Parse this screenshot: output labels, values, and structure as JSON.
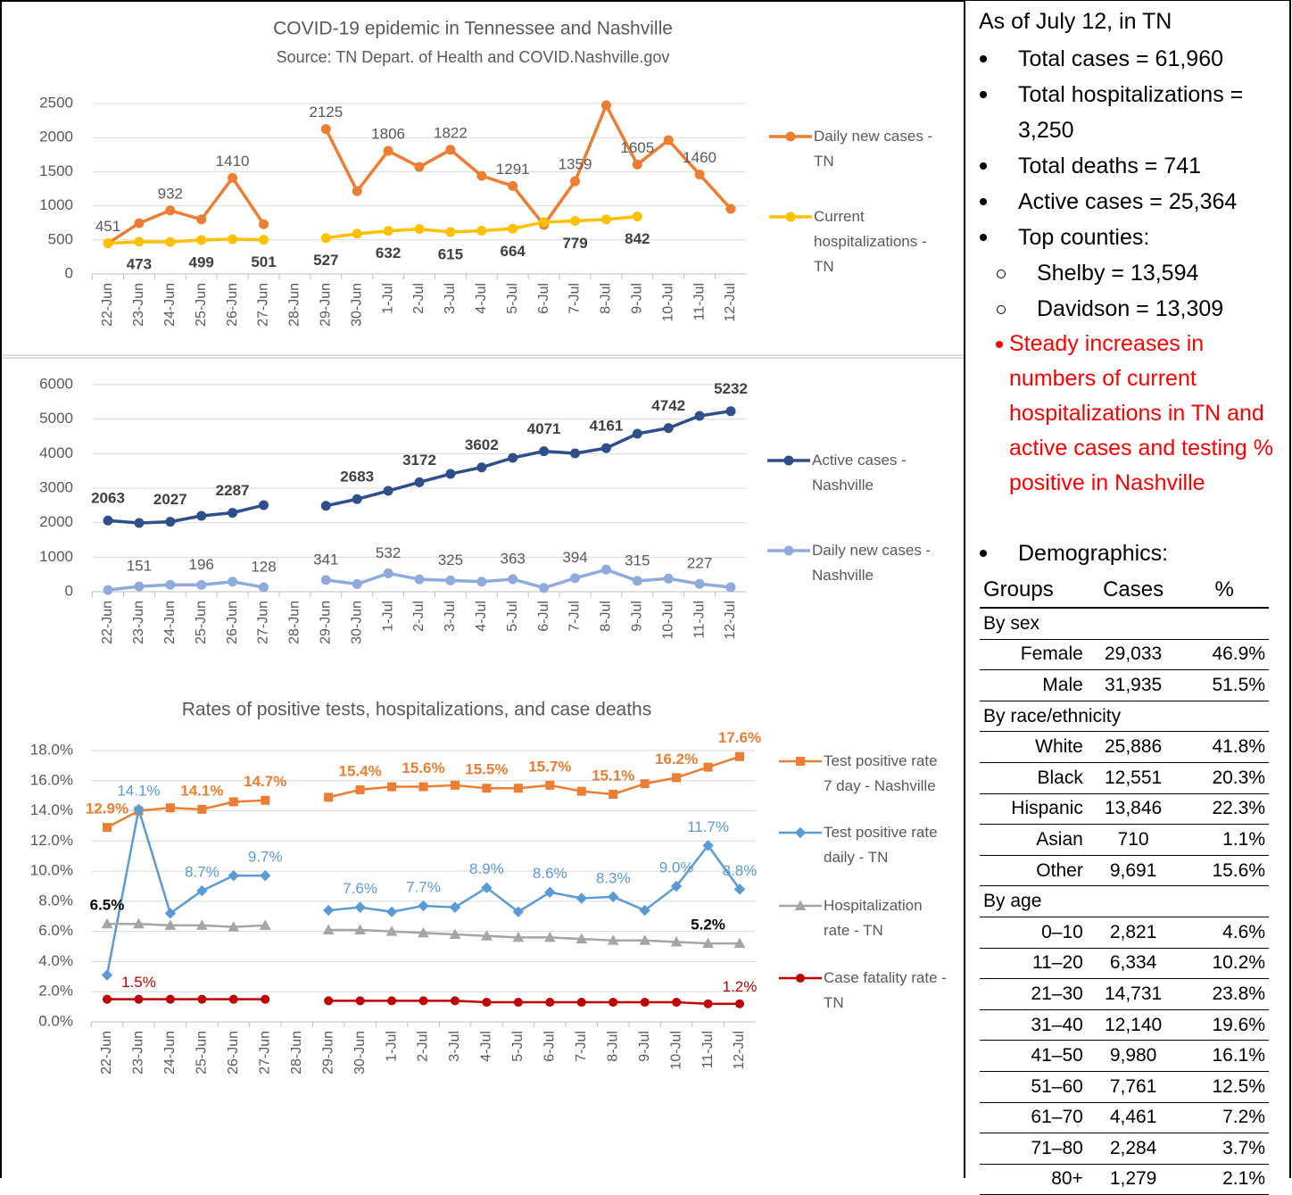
{
  "chart_data": [
    {
      "type": "line",
      "title": "COVID-19 epidemic in Tennessee and Nashville",
      "subtitle": "Source: TN Depart. of Health and COVID.Nashville.gov",
      "categories": [
        "22-Jun",
        "23-Jun",
        "24-Jun",
        "25-Jun",
        "26-Jun",
        "27-Jun",
        "28-Jun",
        "29-Jun",
        "30-Jun",
        "1-Jul",
        "2-Jul",
        "3-Jul",
        "4-Jul",
        "5-Jul",
        "6-Jul",
        "7-Jul",
        "8-Jul",
        "9-Jul",
        "10-Jul",
        "11-Jul",
        "12-Jul"
      ],
      "series": [
        {
          "name": "Daily new cases - TN",
          "color": "#ED7D31",
          "marker": "circle",
          "values": [
            451,
            745,
            932,
            800,
            1410,
            730,
            null,
            2125,
            1215,
            1806,
            1570,
            1822,
            1440,
            1291,
            720,
            1359,
            2474,
            1605,
            1963,
            1460,
            955
          ],
          "value_labels": [
            "451",
            null,
            "932",
            null,
            "1410",
            null,
            null,
            "2125",
            null,
            "1806",
            null,
            "1822",
            null,
            "1291",
            null,
            "1359",
            null,
            "1605",
            null,
            "1460",
            null
          ]
        },
        {
          "name": "Current hospitalizations - TN",
          "color": "#FFC000",
          "marker": "circle",
          "values": [
            450,
            473,
            470,
            499,
            510,
            501,
            null,
            527,
            590,
            632,
            660,
            615,
            635,
            664,
            760,
            779,
            800,
            842,
            null,
            null,
            null
          ],
          "value_labels": [
            null,
            "473",
            null,
            "499",
            null,
            "501",
            null,
            "527",
            null,
            "632",
            null,
            "615",
            null,
            "664",
            null,
            "779",
            null,
            "842",
            null,
            null,
            null
          ]
        }
      ],
      "ylim": [
        0,
        2500
      ],
      "yticks": [
        0,
        500,
        1000,
        1500,
        2000,
        2500
      ],
      "grid": true,
      "legend": "right"
    },
    {
      "type": "line",
      "categories": [
        "22-Jun",
        "23-Jun",
        "24-Jun",
        "25-Jun",
        "26-Jun",
        "27-Jun",
        "28-Jun",
        "29-Jun",
        "30-Jun",
        "1-Jul",
        "2-Jul",
        "3-Jul",
        "4-Jul",
        "5-Jul",
        "6-Jul",
        "7-Jul",
        "8-Jul",
        "9-Jul",
        "10-Jul",
        "11-Jul",
        "12-Jul"
      ],
      "series": [
        {
          "name": "Active cases - Nashville",
          "color": "#2F4E8C",
          "marker": "circle",
          "values": [
            2063,
            1991,
            2027,
            2198,
            2287,
            2508,
            null,
            2490,
            2683,
            2922,
            3172,
            3413,
            3602,
            3879,
            4071,
            4008,
            4161,
            4577,
            4742,
            5094,
            5232
          ],
          "value_labels": [
            "2063",
            null,
            "2027",
            null,
            "2287",
            null,
            null,
            null,
            "2683",
            null,
            "3172",
            null,
            "3602",
            null,
            "4071",
            null,
            "4161",
            null,
            "4742",
            null,
            "5232"
          ]
        },
        {
          "name": "Daily new cases - Nashville",
          "color": "#8FAADC",
          "marker": "circle",
          "values": [
            50,
            151,
            200,
            196,
            290,
            128,
            null,
            341,
            220,
            532,
            360,
            325,
            290,
            363,
            110,
            394,
            640,
            315,
            380,
            227,
            130
          ],
          "value_labels": [
            null,
            "151",
            null,
            "196",
            null,
            "128",
            null,
            "341",
            null,
            "532",
            null,
            "325",
            null,
            "363",
            null,
            "394",
            null,
            "315",
            null,
            "227",
            null
          ]
        }
      ],
      "ylim": [
        0,
        6000
      ],
      "yticks": [
        0,
        1000,
        2000,
        3000,
        4000,
        5000,
        6000
      ],
      "grid": true,
      "legend": "right"
    },
    {
      "type": "line",
      "title": "Rates of positive tests, hospitalizations, and case deaths",
      "categories": [
        "22-Jun",
        "23-Jun",
        "24-Jun",
        "25-Jun",
        "26-Jun",
        "27-Jun",
        "28-Jun",
        "29-Jun",
        "30-Jun",
        "1-Jul",
        "2-Jul",
        "3-Jul",
        "4-Jul",
        "5-Jul",
        "6-Jul",
        "7-Jul",
        "8-Jul",
        "9-Jul",
        "10-Jul",
        "11-Jul",
        "12-Jul"
      ],
      "series": [
        {
          "name": "Test positive rate 7 day - Nashville",
          "color": "#ED7D31",
          "marker": "square",
          "values": [
            12.9,
            14.0,
            14.2,
            14.1,
            14.6,
            14.7,
            null,
            14.9,
            15.4,
            15.6,
            15.6,
            15.7,
            15.5,
            15.5,
            15.7,
            15.3,
            15.1,
            15.8,
            16.2,
            16.9,
            17.6
          ],
          "value_labels": [
            "12.9%",
            null,
            null,
            "14.1%",
            null,
            "14.7%",
            null,
            null,
            "15.4%",
            null,
            "15.6%",
            null,
            "15.5%",
            null,
            "15.7%",
            null,
            "15.1%",
            null,
            "16.2%",
            null,
            "17.6%"
          ]
        },
        {
          "name": "Test positive rate daily - TN",
          "color": "#5B9BD5",
          "marker": "diamond",
          "values": [
            3.1,
            14.1,
            7.2,
            8.7,
            9.7,
            9.7,
            null,
            7.4,
            7.6,
            7.3,
            7.7,
            7.6,
            8.9,
            7.3,
            8.6,
            8.2,
            8.3,
            7.4,
            9.0,
            11.7,
            8.8
          ],
          "value_labels": [
            null,
            "14.1%",
            null,
            "8.7%",
            null,
            "9.7%",
            null,
            null,
            "7.6%",
            null,
            "7.7%",
            null,
            "8.9%",
            null,
            "8.6%",
            null,
            "8.3%",
            null,
            "9.0%",
            "11.7%",
            "8.8%"
          ]
        },
        {
          "name": "Hospitalization rate - TN",
          "color": "#A5A5A5",
          "marker": "triangle",
          "values": [
            6.5,
            6.5,
            6.4,
            6.4,
            6.3,
            6.4,
            null,
            6.1,
            6.1,
            6.0,
            5.9,
            5.8,
            5.7,
            5.6,
            5.6,
            5.5,
            5.4,
            5.4,
            5.3,
            5.2,
            5.2
          ],
          "value_labels": [
            "6.5%",
            null,
            null,
            null,
            null,
            null,
            null,
            null,
            null,
            null,
            null,
            null,
            null,
            null,
            null,
            null,
            null,
            null,
            null,
            "5.2%",
            null
          ]
        },
        {
          "name": "Case fatality rate - TN",
          "color": "#C00000",
          "marker": "circle",
          "values": [
            1.5,
            1.5,
            1.5,
            1.5,
            1.5,
            1.5,
            null,
            1.4,
            1.4,
            1.4,
            1.4,
            1.4,
            1.3,
            1.3,
            1.3,
            1.3,
            1.3,
            1.3,
            1.3,
            1.2,
            1.2
          ],
          "value_labels": [
            null,
            "1.5%",
            null,
            null,
            null,
            null,
            null,
            null,
            null,
            null,
            null,
            null,
            null,
            null,
            null,
            null,
            null,
            null,
            null,
            null,
            "1.2%"
          ]
        }
      ],
      "ylim": [
        0,
        18
      ],
      "yticks": [
        {
          "value": 0,
          "label": "0.0%"
        },
        {
          "value": 2,
          "label": "2.0%"
        },
        {
          "value": 4,
          "label": "4.0%"
        },
        {
          "value": 6,
          "label": "6.0%"
        },
        {
          "value": 8,
          "label": "8.0%"
        },
        {
          "value": 10,
          "label": "10.0%"
        },
        {
          "value": 12,
          "label": "12.0%"
        },
        {
          "value": 14,
          "label": "14.0%"
        },
        {
          "value": 16,
          "label": "16.0%"
        },
        {
          "value": 18,
          "label": "18.0%"
        }
      ],
      "grid": true,
      "legend": "right"
    }
  ],
  "panel": {
    "heading": "As of July 12, in TN",
    "bullets": [
      "Total cases = 61,960",
      "Total hospitalizations = 3,250",
      "Total deaths = 741",
      "Active cases = 25,364",
      "Top counties:"
    ],
    "counties": [
      "Shelby = 13,594",
      "Davidson = 13,309"
    ],
    "highlight": "Steady increases in numbers of current hospitalizations in TN and active cases and testing % positive in Nashville",
    "demographics": "Demographics:",
    "table": {
      "header": [
        "Groups",
        "Cases",
        "%"
      ],
      "sections": [
        {
          "label": "By sex",
          "rows": [
            [
              "Female",
              "29,033",
              "46.9%"
            ],
            [
              "Male",
              "31,935",
              "51.5%"
            ]
          ]
        },
        {
          "label": "By race/ethnicity",
          "rows": [
            [
              "White",
              "25,886",
              "41.8%"
            ],
            [
              "Black",
              "12,551",
              "20.3%"
            ],
            [
              "Hispanic",
              "13,846",
              "22.3%"
            ],
            [
              "Asian",
              "710",
              "1.1%"
            ],
            [
              "Other",
              "9,691",
              "15.6%"
            ]
          ]
        },
        {
          "label": "By age",
          "rows": [
            [
              "0–10",
              "2,821",
              "4.6%"
            ],
            [
              "11–20",
              "6,334",
              "10.2%"
            ],
            [
              "21–30",
              "14,731",
              "23.8%"
            ],
            [
              "31–40",
              "12,140",
              "19.6%"
            ],
            [
              "41–50",
              "9,980",
              "16.1%"
            ],
            [
              "51–60",
              "7,761",
              "12.5%"
            ],
            [
              "61–70",
              "4,461",
              "7.2%"
            ],
            [
              "71–80",
              "2,284",
              "3.7%"
            ],
            [
              "80+",
              "1,279",
              "2.1%"
            ]
          ]
        }
      ]
    }
  }
}
